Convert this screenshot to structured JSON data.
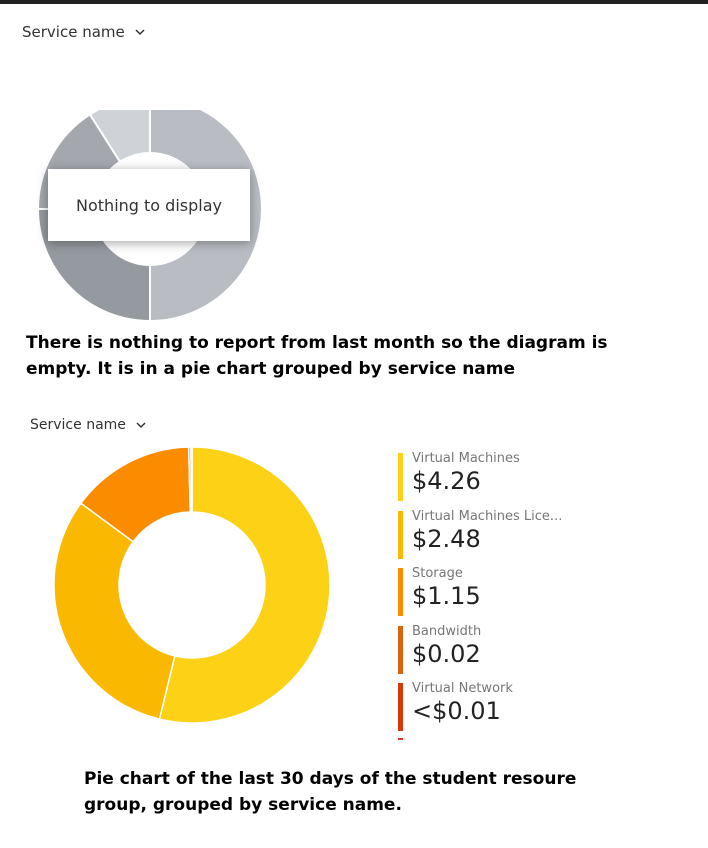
{
  "top": {
    "dropdown_label": "Service name",
    "empty_message": "Nothing to display",
    "caption": "There is nothing to report from last month so the diagram is empty. It is in a pie chart grouped by service name"
  },
  "bottom": {
    "dropdown_label": "Service name",
    "caption": "Pie chart of the last 30 days of the student resoure group, grouped by service name."
  },
  "colors": {
    "empty_slices": [
      "#b9bdc3",
      "#cfd2d6",
      "#a4a8ae",
      "#959aa0"
    ],
    "series": [
      "#fcd116",
      "#fbb800",
      "#fb8c00",
      "#d9640f",
      "#d4390a",
      "#e03030"
    ]
  },
  "chart_data": [
    {
      "type": "pie",
      "title": "",
      "values": [],
      "empty": true
    },
    {
      "type": "pie",
      "title": "",
      "categories": [
        "Virtual Machines",
        "Virtual Machines Lice...",
        "Storage",
        "Bandwidth",
        "Virtual Network"
      ],
      "values": [
        4.26,
        2.48,
        1.15,
        0.02,
        0.01
      ],
      "labels": [
        "$4.26",
        "$2.48",
        "$1.15",
        "$0.02",
        "<$0.01"
      ],
      "legend": "right"
    }
  ]
}
